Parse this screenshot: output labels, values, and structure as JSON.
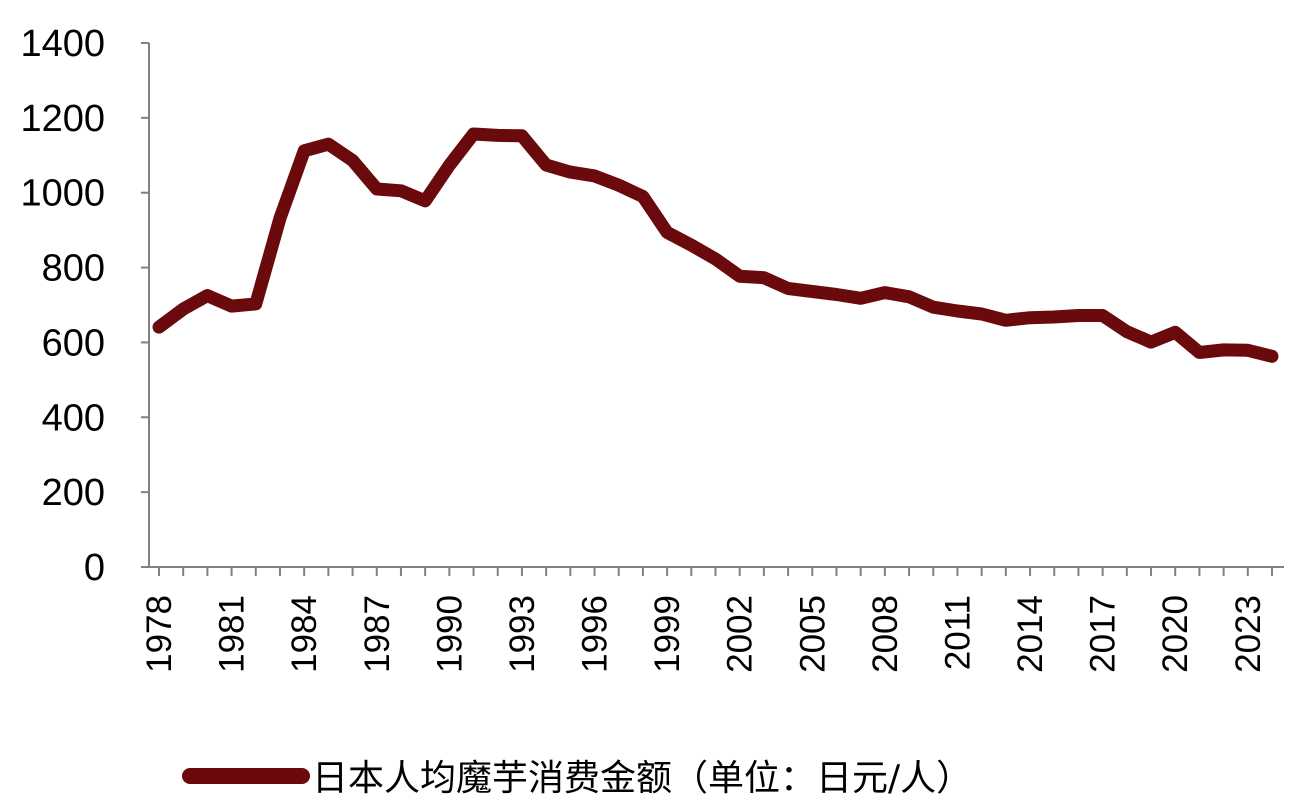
{
  "chart_data": {
    "type": "line",
    "title": "",
    "xlabel": "",
    "ylabel": "",
    "ylim": [
      0,
      1400
    ],
    "yticks": [
      "0",
      "200",
      "400",
      "600",
      "800",
      "1000",
      "1200",
      "1400"
    ],
    "xticks": [
      "1978",
      "1981",
      "1984",
      "1987",
      "1990",
      "1993",
      "1996",
      "1999",
      "2002",
      "2005",
      "2008",
      "2011",
      "2014",
      "2017",
      "2020",
      "2023"
    ],
    "grid": false,
    "legend_position": "bottom",
    "series": [
      {
        "name": "日本人均魔芋消费金额（单位：日元/人）",
        "color": "#6b0a0c",
        "x": [
          1978,
          1979,
          1980,
          1981,
          1982,
          1983,
          1984,
          1985,
          1986,
          1987,
          1988,
          1989,
          1990,
          1991,
          1992,
          1993,
          1994,
          1995,
          1996,
          1997,
          1998,
          1999,
          2000,
          2001,
          2002,
          2003,
          2004,
          2005,
          2006,
          2007,
          2008,
          2009,
          2010,
          2011,
          2012,
          2013,
          2014,
          2015,
          2016,
          2017,
          2018,
          2019,
          2020,
          2021,
          2022,
          2023,
          2024
        ],
        "values": [
          641,
          689,
          725,
          697,
          703,
          932,
          1112,
          1130,
          1086,
          1010,
          1005,
          978,
          1073,
          1157,
          1153,
          1152,
          1074,
          1055,
          1045,
          1020,
          990,
          894,
          860,
          823,
          777,
          773,
          744,
          736,
          728,
          718,
          733,
          722,
          694,
          684,
          676,
          659,
          666,
          668,
          672,
          672,
          629,
          601,
          627,
          573,
          580,
          579,
          563
        ]
      }
    ]
  }
}
